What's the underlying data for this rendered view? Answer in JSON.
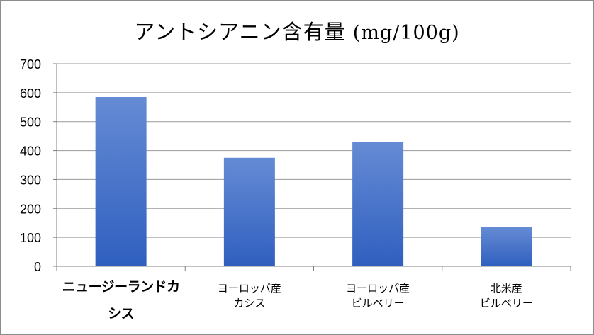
{
  "chart_data": {
    "type": "bar",
    "title": "アントシアニン含有量",
    "title_unit": "(mg/100g)",
    "categories": [
      [
        "ニュージーランドカ",
        "シス"
      ],
      [
        "ヨーロッパ産",
        "カシス"
      ],
      [
        "ヨーロッパ産",
        "ビルベリー"
      ],
      [
        "北米産",
        "ビルベリー"
      ]
    ],
    "values": [
      585,
      375,
      430,
      135
    ],
    "ylim": [
      0,
      700
    ],
    "yticks": [
      0,
      100,
      200,
      300,
      400,
      500,
      600,
      700
    ],
    "grid": true,
    "bar_color": "#4472c4"
  }
}
